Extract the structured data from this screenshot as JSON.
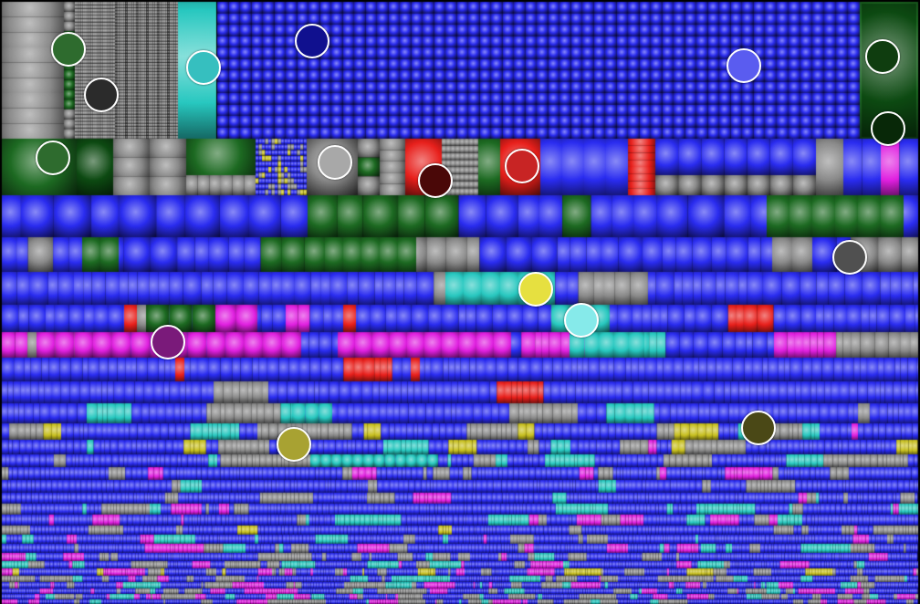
{
  "view": {
    "type": "disk-usage-treemap",
    "background": "#000000"
  },
  "file_type_colors": {
    "blue": "#2a2cf0",
    "gray": "#8a8a8a",
    "dark_gray": "#4a4a4a",
    "green": "#1d6a22",
    "cyan": "#28c8c0",
    "magenta": "#e020e0",
    "red": "#e8201c",
    "yellow": "#c8c020"
  },
  "color_markers": [
    {
      "name": "green",
      "color": "#2e6b2e"
    },
    {
      "name": "charcoal",
      "color": "#2b2b2b"
    },
    {
      "name": "teal",
      "color": "#36bfbf"
    },
    {
      "name": "navy",
      "color": "#10108f"
    },
    {
      "name": "periwinkle",
      "color": "#5a5cf0"
    },
    {
      "name": "dark-green",
      "color": "#0f3d0f"
    },
    {
      "name": "deep-green",
      "color": "#082808"
    },
    {
      "name": "green-2",
      "color": "#2e6b2e"
    },
    {
      "name": "light-gray",
      "color": "#a8a8a8"
    },
    {
      "name": "maroon",
      "color": "#4a0808"
    },
    {
      "name": "red",
      "color": "#c82424"
    },
    {
      "name": "gray",
      "color": "#505050"
    },
    {
      "name": "yellow",
      "color": "#e6e040"
    },
    {
      "name": "light-cyan",
      "color": "#86eaea"
    },
    {
      "name": "purple",
      "color": "#7a1a7a"
    },
    {
      "name": "olive",
      "color": "#4a4816"
    },
    {
      "name": "olive-yellow",
      "color": "#a8a232"
    }
  ]
}
